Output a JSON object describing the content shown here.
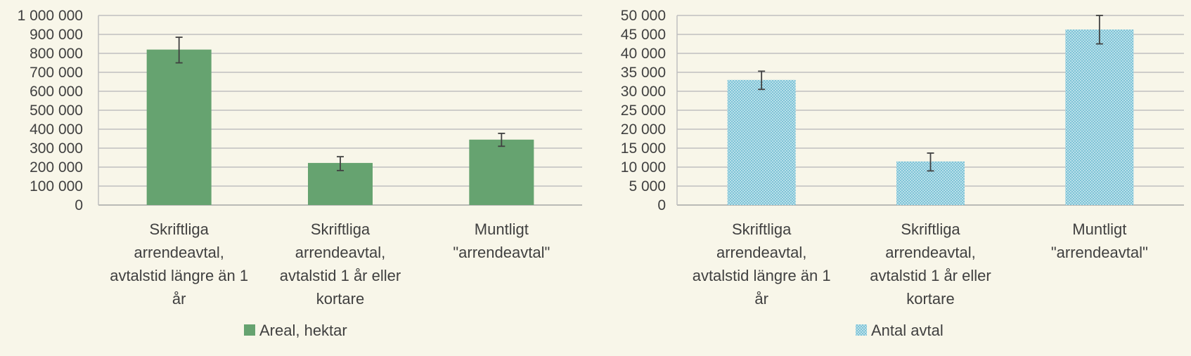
{
  "chart_data": [
    {
      "type": "bar",
      "categories": [
        [
          "Skriftliga",
          "arrendeavtal,",
          "avtalstid längre än 1",
          "år"
        ],
        [
          "Skriftliga",
          "arrendeavtal,",
          "avtalstid 1 år eller",
          "kortare"
        ],
        [
          "Muntligt",
          "\"arrendeavtal\""
        ]
      ],
      "series": [
        {
          "name": "Areal, hektar",
          "values": [
            820000,
            222000,
            345000
          ],
          "error_low": [
            750000,
            182000,
            310000
          ],
          "error_high": [
            885000,
            255000,
            378000
          ]
        }
      ],
      "yticks": [
        "0",
        "100 000",
        "200 000",
        "300 000",
        "400 000",
        "500 000",
        "600 000",
        "700 000",
        "800 000",
        "900 000",
        "1 000 000"
      ],
      "ylim": [
        0,
        1000000
      ],
      "ystep": 100000,
      "grid": true,
      "legend": "bottom",
      "color": "#66a370",
      "pattern": false
    },
    {
      "type": "bar",
      "categories": [
        [
          "Skriftliga",
          "arrendeavtal,",
          "avtalstid längre än 1",
          "år"
        ],
        [
          "Skriftliga",
          "arrendeavtal,",
          "avtalstid 1 år eller",
          "kortare"
        ],
        [
          "Muntligt",
          "\"arrendeavtal\""
        ]
      ],
      "series": [
        {
          "name": "Antal avtal",
          "values": [
            33000,
            11500,
            46300
          ],
          "error_low": [
            30500,
            9000,
            42500
          ],
          "error_high": [
            35300,
            13700,
            50000
          ]
        }
      ],
      "yticks": [
        "0",
        "5 000",
        "10 000",
        "15 000",
        "20 000",
        "25 000",
        "30 000",
        "35 000",
        "40 000",
        "45 000",
        "50 000"
      ],
      "ylim": [
        0,
        50000
      ],
      "ystep": 5000,
      "grid": true,
      "legend": "bottom",
      "color": "#a8d8e4",
      "pattern": true
    }
  ]
}
